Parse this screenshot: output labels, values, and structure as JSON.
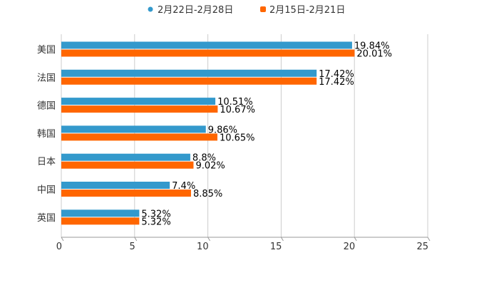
{
  "chart_data": {
    "type": "bar",
    "orientation": "horizontal",
    "categories": [
      "美国",
      "法国",
      "德国",
      "韩国",
      "日本",
      "中国",
      "英国"
    ],
    "series": [
      {
        "name": "2月22日-2月28日",
        "color": "#3399cc",
        "values": [
          19.84,
          17.42,
          10.51,
          9.86,
          8.8,
          7.4,
          5.32
        ],
        "labels": [
          "19.84%",
          "17.42%",
          "10.51%",
          "9.86%",
          "8.8%",
          "7.4%",
          "5.32%"
        ]
      },
      {
        "name": "2月15日-2月21日",
        "color": "#ff6600",
        "values": [
          20.01,
          17.42,
          10.67,
          10.65,
          9.02,
          8.85,
          5.32
        ],
        "labels": [
          "20.01%",
          "17.42%",
          "10.67%",
          "10.65%",
          "9.02%",
          "8.85%",
          "5.32%"
        ]
      }
    ],
    "xlim": [
      0,
      25
    ],
    "x_ticks": [
      "0",
      "5",
      "10",
      "15",
      "20",
      "25"
    ],
    "grid": true,
    "legend_position": "top-center",
    "title": "",
    "xlabel": "",
    "ylabel": ""
  }
}
